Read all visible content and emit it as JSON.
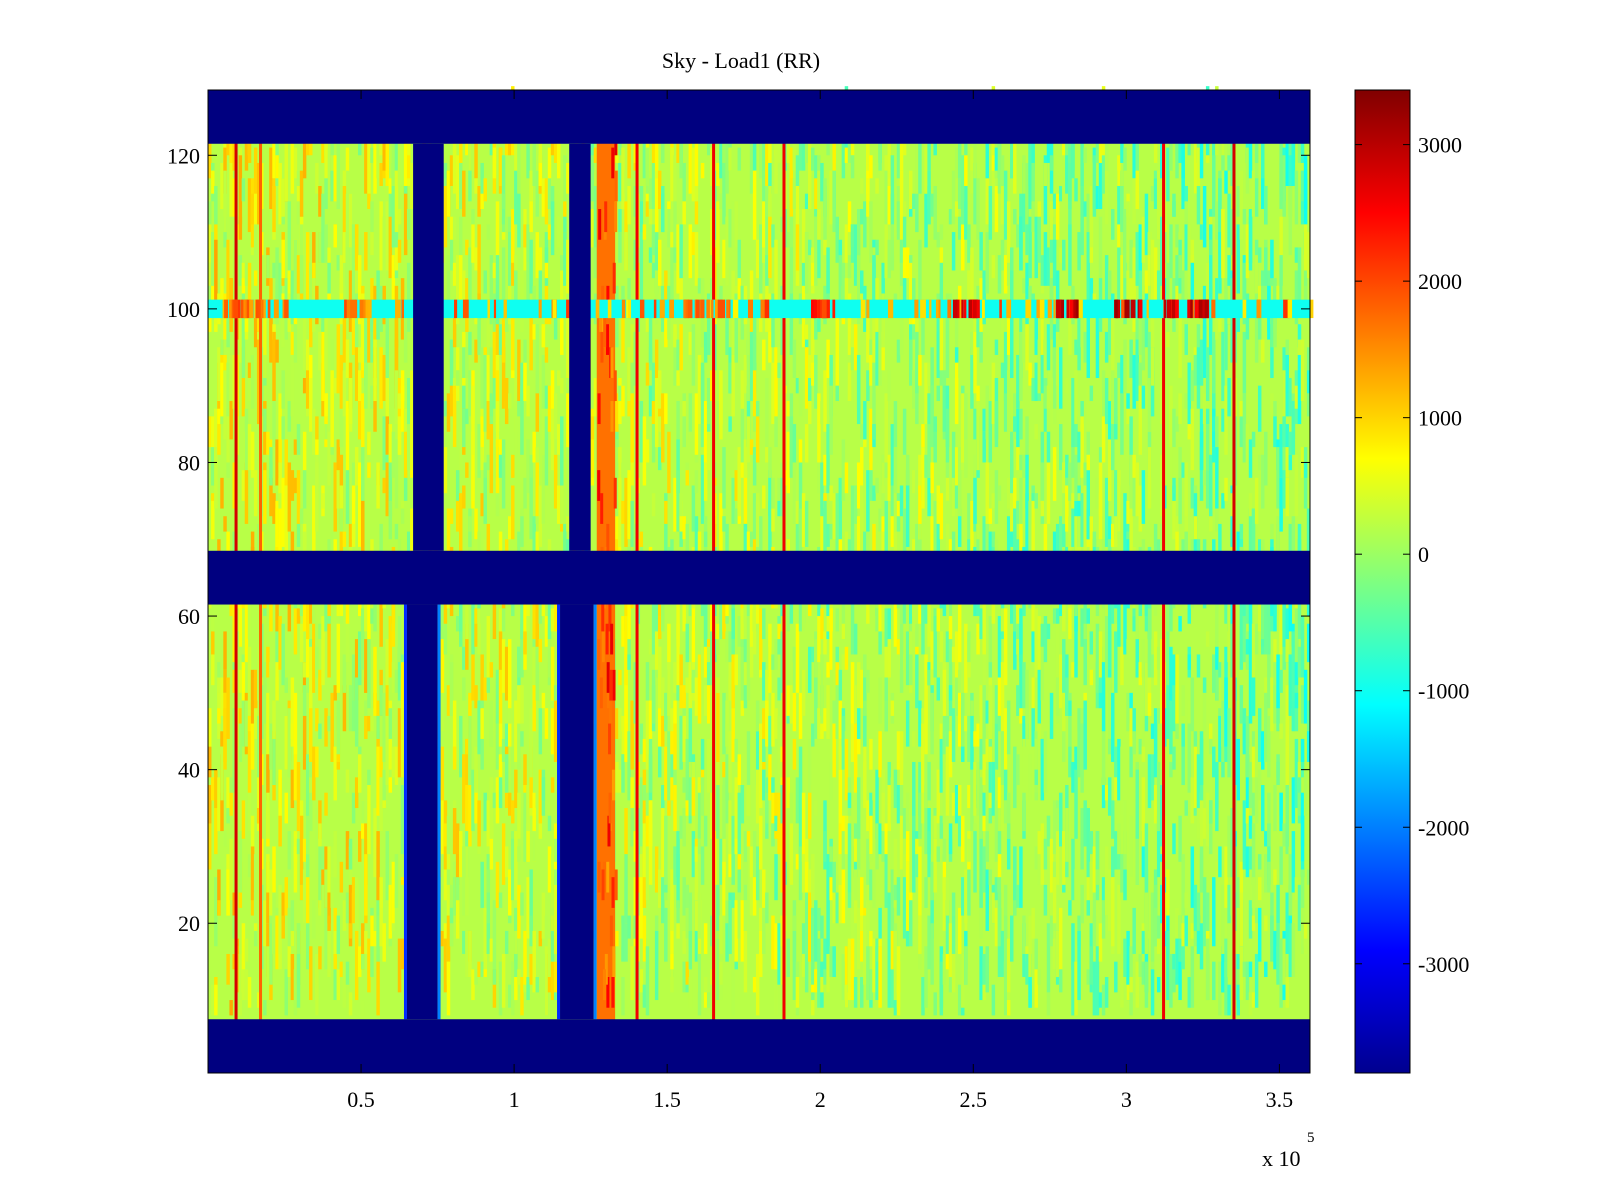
{
  "chart_data": {
    "type": "heatmap",
    "title": "Sky - Load1 (RR)",
    "xlabel": "",
    "ylabel": "",
    "x_multiplier_base": "x 10",
    "x_multiplier_exp": "5",
    "xlim": [
      0,
      3.6
    ],
    "ylim": [
      1,
      128
    ],
    "xticks": [
      {
        "value": 0.5,
        "label": "0.5"
      },
      {
        "value": 1,
        "label": "1"
      },
      {
        "value": 1.5,
        "label": "1.5"
      },
      {
        "value": 2,
        "label": "2"
      },
      {
        "value": 2.5,
        "label": "2.5"
      },
      {
        "value": 3,
        "label": "3"
      },
      {
        "value": 3.5,
        "label": "3.5"
      }
    ],
    "yticks": [
      {
        "value": 20,
        "label": "20"
      },
      {
        "value": 40,
        "label": "40"
      },
      {
        "value": 60,
        "label": "60"
      },
      {
        "value": 80,
        "label": "80"
      },
      {
        "value": 100,
        "label": "100"
      },
      {
        "value": 120,
        "label": "120"
      }
    ],
    "colorbar": {
      "min": -3800,
      "max": 3400,
      "colormap": "jet",
      "ticks": [
        {
          "value": 3000,
          "label": "3000"
        },
        {
          "value": 2000,
          "label": "2000"
        },
        {
          "value": 1000,
          "label": "1000"
        },
        {
          "value": 0,
          "label": "0"
        },
        {
          "value": -1000,
          "label": "-1000"
        },
        {
          "value": -2000,
          "label": "-2000"
        },
        {
          "value": -3000,
          "label": "-3000"
        }
      ]
    },
    "background_value": 200,
    "masked_value": -3800,
    "masked_row_bands": [
      {
        "from": 0.5,
        "to": 7.5
      },
      {
        "from": 61.5,
        "to": 68.5
      },
      {
        "from": 121.5,
        "to": 128.5
      }
    ],
    "masked_column_bands_lower": [
      {
        "from": 0.65,
        "to": 0.75
      },
      {
        "from": 1.15,
        "to": 1.26
      }
    ],
    "masked_column_bands_upper": [
      {
        "from": 0.67,
        "to": 0.77
      },
      {
        "from": 1.18,
        "to": 1.25
      }
    ],
    "hot_columns": [
      {
        "x": 0.09,
        "value": 2800
      },
      {
        "x": 0.17,
        "value": 1800
      },
      {
        "x": 1.4,
        "value": 2600
      },
      {
        "x": 1.65,
        "value": 2600
      },
      {
        "x": 1.88,
        "value": 2600
      },
      {
        "x": 3.12,
        "value": 2600
      },
      {
        "x": 3.35,
        "value": 2800
      }
    ],
    "warm_band": {
      "from": 1.27,
      "to": 1.33,
      "value": 1700
    },
    "rfi_row": {
      "row": 100,
      "base_value": -1000,
      "spikes": [
        {
          "from": 2.42,
          "to": 2.52,
          "value": 3200
        },
        {
          "from": 2.74,
          "to": 2.84,
          "value": 3200
        },
        {
          "from": 2.95,
          "to": 3.05,
          "value": 3200
        },
        {
          "from": 3.12,
          "to": 3.2,
          "value": 3000
        },
        {
          "from": 3.2,
          "to": 3.28,
          "value": 3200
        },
        {
          "from": 1.55,
          "to": 1.7,
          "value": 2000
        },
        {
          "from": 1.95,
          "to": 2.05,
          "value": 2500
        },
        {
          "from": 0.05,
          "to": 0.25,
          "value": 2000
        }
      ]
    }
  }
}
